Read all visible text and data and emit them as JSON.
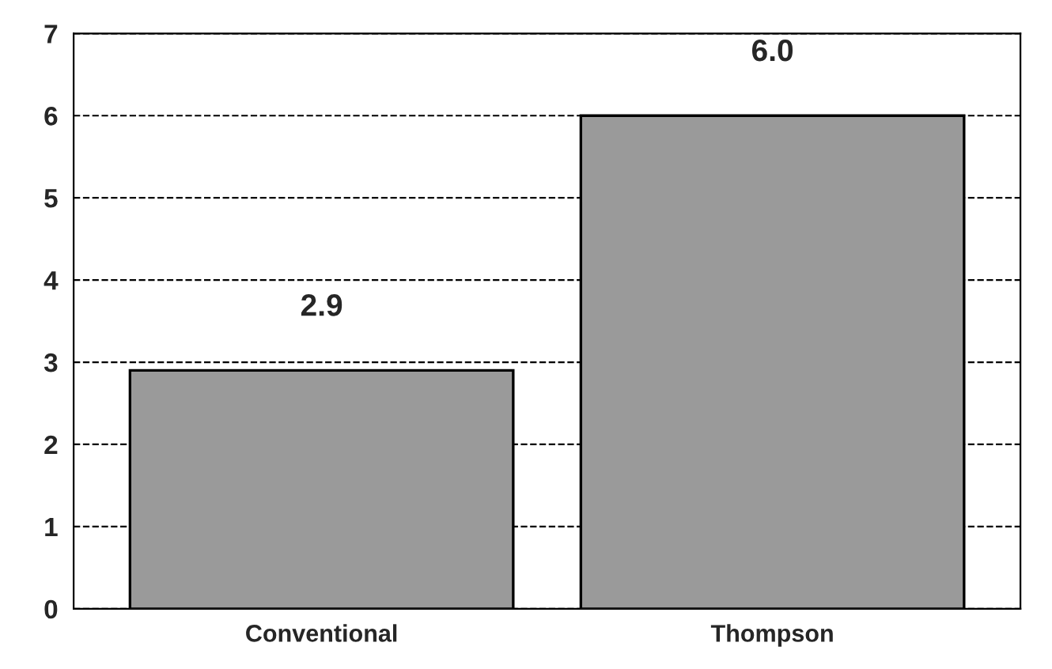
{
  "chart_data": {
    "type": "bar",
    "categories": [
      "Conventional",
      "Thompson"
    ],
    "values": [
      2.9,
      6.0
    ],
    "color": "#9a9a9a",
    "value_labels": [
      "2.9",
      "6.0"
    ],
    "ylim": [
      0,
      7
    ],
    "yticks": [
      0,
      1,
      2,
      3,
      4,
      5,
      6,
      7
    ],
    "grid": "y",
    "line_style": "dashed"
  }
}
